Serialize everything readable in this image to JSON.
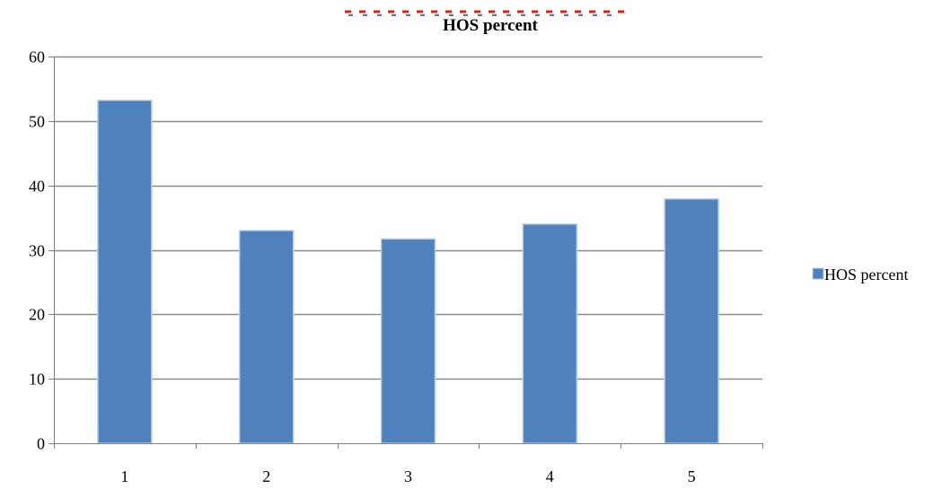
{
  "chart_data": {
    "type": "bar",
    "title": "HOS percent",
    "categories": [
      "1",
      "2",
      "3",
      "4",
      "5"
    ],
    "series": [
      {
        "name": "HOS percent",
        "values": [
          53.2,
          33.0,
          31.7,
          34.0,
          37.9
        ],
        "color": "#4f81bd"
      }
    ],
    "ylim": [
      0,
      60
    ],
    "yticks": [
      0,
      10,
      20,
      30,
      40,
      50,
      60
    ],
    "grid": true,
    "legend_position": "right",
    "colors": {
      "bar_fill": "#4f81bd",
      "bar_edge": "#b9cde5",
      "grid": "#8c8c8c",
      "axis": "#7f7f7f"
    }
  }
}
